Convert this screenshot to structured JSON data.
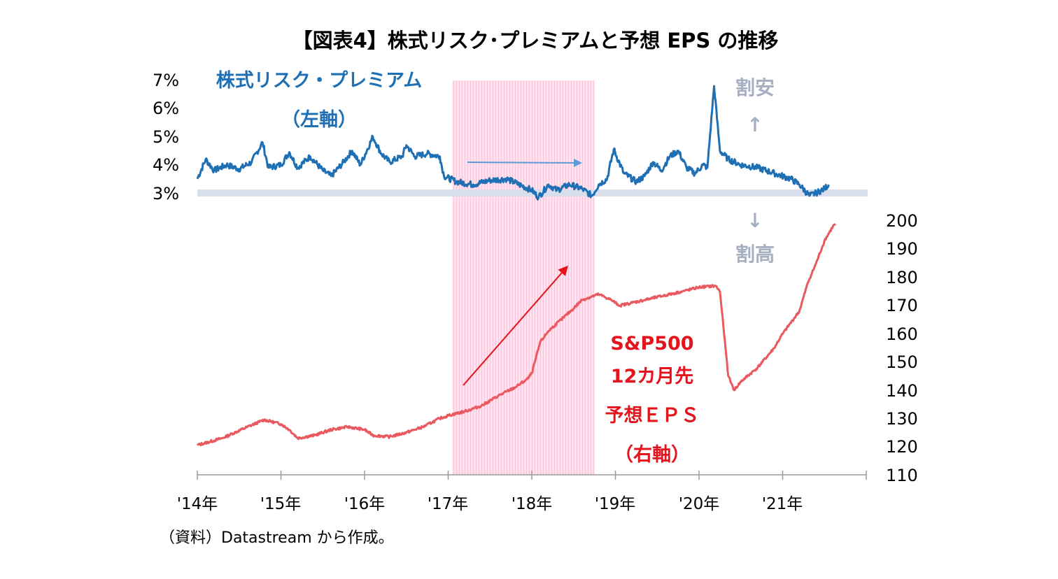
{
  "chart_data": {
    "type": "line",
    "title": "【図表4】株式リスク･プレミアムと予想 EPS の推移",
    "x_tick_labels": [
      "'14年",
      "'15年",
      "'16年",
      "'17年",
      "'18年",
      "'19年",
      "'20年",
      "'21年"
    ],
    "x_range": [
      2014.0,
      2022.0
    ],
    "left_axis": {
      "ticks": [
        "7%",
        "6%",
        "5%",
        "4%",
        "3%"
      ],
      "range": [
        3,
        7
      ]
    },
    "right_axis": {
      "ticks": [
        "200",
        "190",
        "180",
        "170",
        "160",
        "150",
        "140",
        "130",
        "120",
        "110"
      ],
      "range": [
        110,
        200
      ]
    },
    "highlight_range": [
      2017.05,
      2018.75
    ],
    "baseline_value": 3.0,
    "series": [
      {
        "name_lines": [
          "株式リスク・プレミアム",
          "（左軸）"
        ],
        "axis": "left",
        "color": "#1f6fb4",
        "points": [
          [
            2014.0,
            3.5
          ],
          [
            2014.1,
            4.2
          ],
          [
            2014.2,
            3.8
          ],
          [
            2014.35,
            4.0
          ],
          [
            2014.5,
            3.85
          ],
          [
            2014.65,
            4.1
          ],
          [
            2014.78,
            4.8
          ],
          [
            2014.85,
            3.9
          ],
          [
            2015.0,
            4.0
          ],
          [
            2015.1,
            4.45
          ],
          [
            2015.2,
            3.9
          ],
          [
            2015.35,
            4.3
          ],
          [
            2015.5,
            3.8
          ],
          [
            2015.6,
            3.6
          ],
          [
            2015.75,
            4.1
          ],
          [
            2015.85,
            4.5
          ],
          [
            2015.95,
            4.0
          ],
          [
            2016.1,
            5.0
          ],
          [
            2016.2,
            4.4
          ],
          [
            2016.3,
            4.1
          ],
          [
            2016.45,
            4.3
          ],
          [
            2016.5,
            4.7
          ],
          [
            2016.6,
            4.3
          ],
          [
            2016.75,
            4.4
          ],
          [
            2016.9,
            4.3
          ],
          [
            2016.95,
            3.6
          ],
          [
            2017.1,
            3.4
          ],
          [
            2017.3,
            3.3
          ],
          [
            2017.5,
            3.45
          ],
          [
            2017.7,
            3.5
          ],
          [
            2017.85,
            3.3
          ],
          [
            2018.0,
            3.1
          ],
          [
            2018.08,
            2.85
          ],
          [
            2018.2,
            3.3
          ],
          [
            2018.3,
            3.1
          ],
          [
            2018.45,
            3.3
          ],
          [
            2018.6,
            3.15
          ],
          [
            2018.72,
            2.9
          ],
          [
            2018.8,
            3.3
          ],
          [
            2018.9,
            3.5
          ],
          [
            2018.98,
            4.55
          ],
          [
            2019.1,
            3.7
          ],
          [
            2019.25,
            3.4
          ],
          [
            2019.35,
            3.6
          ],
          [
            2019.45,
            4.1
          ],
          [
            2019.55,
            3.8
          ],
          [
            2019.65,
            4.3
          ],
          [
            2019.75,
            4.5
          ],
          [
            2019.85,
            3.9
          ],
          [
            2019.95,
            3.7
          ],
          [
            2020.05,
            4.0
          ],
          [
            2020.1,
            3.9
          ],
          [
            2020.18,
            6.8
          ],
          [
            2020.25,
            4.5
          ],
          [
            2020.35,
            4.2
          ],
          [
            2020.5,
            4.0
          ],
          [
            2020.7,
            3.9
          ],
          [
            2020.9,
            3.7
          ],
          [
            2021.1,
            3.5
          ],
          [
            2021.2,
            3.3
          ],
          [
            2021.32,
            2.9
          ],
          [
            2021.4,
            3.0
          ],
          [
            2021.5,
            3.15
          ],
          [
            2021.55,
            3.3
          ]
        ]
      },
      {
        "name_lines": [
          "S&P500",
          "12カ月先",
          "予想ＥＰＳ",
          "（右軸）"
        ],
        "axis": "right",
        "color": "#e85a5f",
        "points": [
          [
            2014.0,
            120.5
          ],
          [
            2014.3,
            123
          ],
          [
            2014.6,
            127
          ],
          [
            2014.8,
            129.5
          ],
          [
            2015.0,
            128
          ],
          [
            2015.1,
            126
          ],
          [
            2015.2,
            123
          ],
          [
            2015.4,
            124
          ],
          [
            2015.6,
            126
          ],
          [
            2015.8,
            127
          ],
          [
            2016.0,
            126
          ],
          [
            2016.1,
            124
          ],
          [
            2016.3,
            123.5
          ],
          [
            2016.5,
            125
          ],
          [
            2016.7,
            127
          ],
          [
            2016.9,
            130
          ],
          [
            2017.0,
            131
          ],
          [
            2017.2,
            132.5
          ],
          [
            2017.4,
            134.5
          ],
          [
            2017.6,
            138
          ],
          [
            2017.8,
            141
          ],
          [
            2017.95,
            144
          ],
          [
            2018.0,
            146
          ],
          [
            2018.1,
            157
          ],
          [
            2018.2,
            161
          ],
          [
            2018.35,
            165
          ],
          [
            2018.5,
            169
          ],
          [
            2018.6,
            172
          ],
          [
            2018.8,
            174
          ],
          [
            2018.95,
            172
          ],
          [
            2019.05,
            170
          ],
          [
            2019.2,
            171
          ],
          [
            2019.5,
            173
          ],
          [
            2019.8,
            175
          ],
          [
            2020.0,
            176.5
          ],
          [
            2020.2,
            177
          ],
          [
            2020.25,
            175
          ],
          [
            2020.3,
            160
          ],
          [
            2020.35,
            145
          ],
          [
            2020.42,
            140
          ],
          [
            2020.5,
            143
          ],
          [
            2020.7,
            148
          ],
          [
            2020.9,
            155
          ],
          [
            2021.0,
            160
          ],
          [
            2021.2,
            168
          ],
          [
            2021.3,
            178
          ],
          [
            2021.4,
            185
          ],
          [
            2021.5,
            193
          ],
          [
            2021.6,
            198
          ],
          [
            2021.63,
            199
          ]
        ]
      }
    ],
    "annotations": {
      "cheap_label": "割安",
      "up_arrow": "↑",
      "down_arrow": "↓",
      "expensive_label": "割高"
    },
    "source_note": "（資料）Datastream から作成。"
  }
}
